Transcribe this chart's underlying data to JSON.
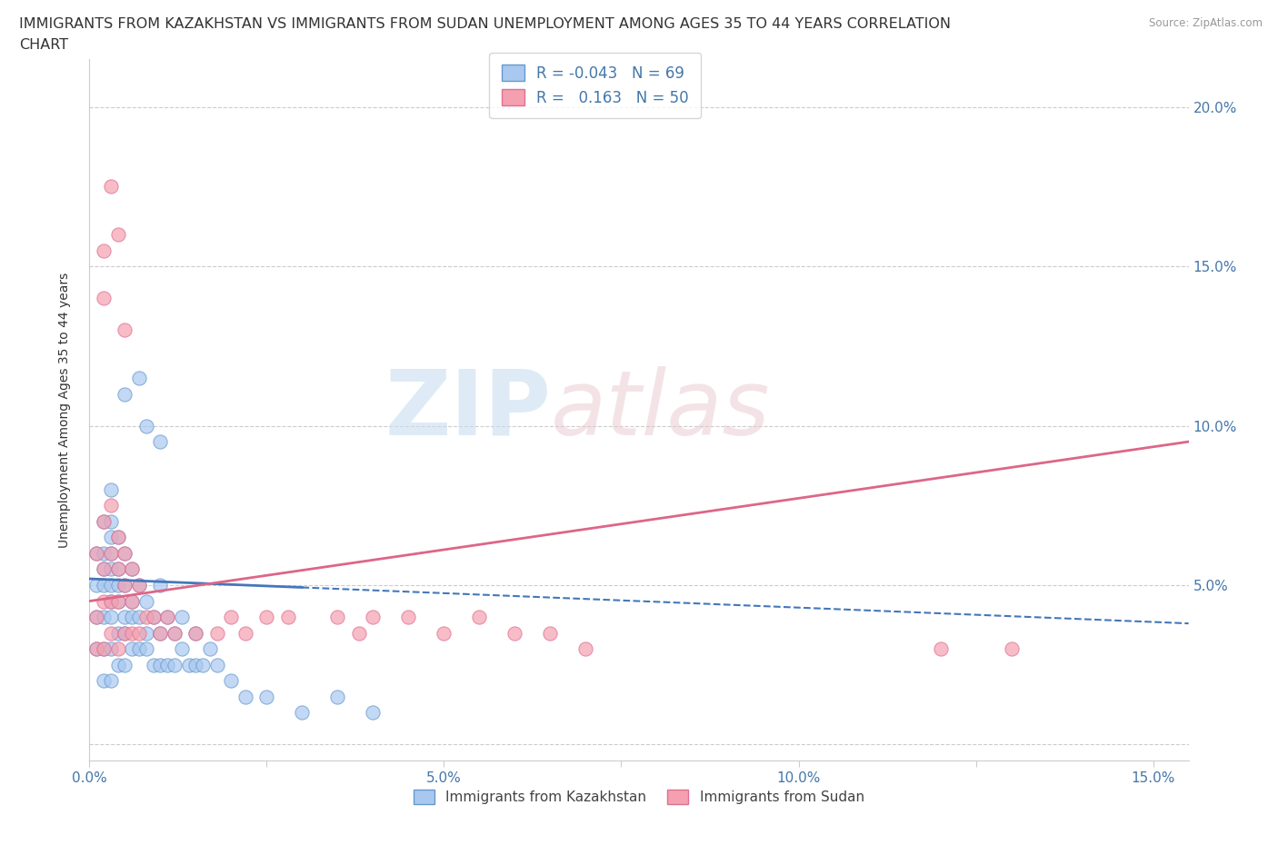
{
  "title_line1": "IMMIGRANTS FROM KAZAKHSTAN VS IMMIGRANTS FROM SUDAN UNEMPLOYMENT AMONG AGES 35 TO 44 YEARS CORRELATION",
  "title_line2": "CHART",
  "source_text": "Source: ZipAtlas.com",
  "ylabel": "Unemployment Among Ages 35 to 44 years",
  "xlim": [
    0.0,
    0.155
  ],
  "ylim": [
    -0.005,
    0.215
  ],
  "x_ticks": [
    0.0,
    0.025,
    0.05,
    0.075,
    0.1,
    0.125,
    0.15
  ],
  "x_tick_labels": [
    "0.0%",
    "",
    "5.0%",
    "",
    "10.0%",
    "",
    "15.0%"
  ],
  "y_ticks": [
    0.0,
    0.05,
    0.1,
    0.15,
    0.2
  ],
  "y_tick_labels": [
    "",
    "5.0%",
    "10.0%",
    "15.0%",
    "20.0%"
  ],
  "kazakhstan_color": "#a8c8f0",
  "sudan_color": "#f4a0b0",
  "kazakhstan_edge": "#6699cc",
  "sudan_edge": "#e07090",
  "trend_kaz_color": "#4477bb",
  "trend_sud_color": "#dd6688",
  "R_kaz": -0.043,
  "N_kaz": 69,
  "R_sud": 0.163,
  "N_sud": 50,
  "legend_label_kaz": "Immigrants from Kazakhstan",
  "legend_label_sud": "Immigrants from Sudan",
  "watermark_zip": "ZIP",
  "watermark_atlas": "atlas",
  "grid_color": "#cccccc",
  "background_color": "#ffffff",
  "title_fontsize": 11.5,
  "axis_label_fontsize": 10,
  "tick_fontsize": 11,
  "tick_color": "#4477aa",
  "kaz_trend_start_x": 0.0,
  "kaz_trend_end_x": 0.155,
  "kaz_trend_start_y": 0.052,
  "kaz_trend_end_y": 0.038,
  "sud_trend_start_x": 0.0,
  "sud_trend_end_x": 0.155,
  "sud_trend_start_y": 0.045,
  "sud_trend_end_y": 0.095,
  "kaz_x": [
    0.001,
    0.001,
    0.001,
    0.001,
    0.002,
    0.002,
    0.002,
    0.002,
    0.002,
    0.002,
    0.002,
    0.003,
    0.003,
    0.003,
    0.003,
    0.003,
    0.003,
    0.003,
    0.003,
    0.003,
    0.003,
    0.004,
    0.004,
    0.004,
    0.004,
    0.004,
    0.004,
    0.005,
    0.005,
    0.005,
    0.005,
    0.005,
    0.006,
    0.006,
    0.006,
    0.006,
    0.007,
    0.007,
    0.007,
    0.008,
    0.008,
    0.008,
    0.009,
    0.009,
    0.01,
    0.01,
    0.01,
    0.011,
    0.011,
    0.012,
    0.012,
    0.013,
    0.013,
    0.014,
    0.015,
    0.015,
    0.016,
    0.017,
    0.018,
    0.02,
    0.022,
    0.025,
    0.03,
    0.035,
    0.04,
    0.005,
    0.007,
    0.008,
    0.01
  ],
  "kaz_y": [
    0.03,
    0.04,
    0.05,
    0.06,
    0.02,
    0.03,
    0.04,
    0.05,
    0.055,
    0.06,
    0.07,
    0.02,
    0.03,
    0.04,
    0.045,
    0.05,
    0.055,
    0.06,
    0.065,
    0.07,
    0.08,
    0.025,
    0.035,
    0.045,
    0.05,
    0.055,
    0.065,
    0.025,
    0.035,
    0.04,
    0.05,
    0.06,
    0.03,
    0.04,
    0.045,
    0.055,
    0.03,
    0.04,
    0.05,
    0.03,
    0.035,
    0.045,
    0.025,
    0.04,
    0.025,
    0.035,
    0.05,
    0.025,
    0.04,
    0.025,
    0.035,
    0.03,
    0.04,
    0.025,
    0.025,
    0.035,
    0.025,
    0.03,
    0.025,
    0.02,
    0.015,
    0.015,
    0.01,
    0.015,
    0.01,
    0.11,
    0.115,
    0.1,
    0.095
  ],
  "sud_x": [
    0.001,
    0.001,
    0.001,
    0.002,
    0.002,
    0.002,
    0.002,
    0.003,
    0.003,
    0.003,
    0.003,
    0.004,
    0.004,
    0.004,
    0.004,
    0.005,
    0.005,
    0.005,
    0.006,
    0.006,
    0.006,
    0.007,
    0.007,
    0.008,
    0.009,
    0.01,
    0.011,
    0.012,
    0.015,
    0.018,
    0.02,
    0.022,
    0.025,
    0.028,
    0.035,
    0.038,
    0.04,
    0.045,
    0.05,
    0.055,
    0.06,
    0.065,
    0.07,
    0.12,
    0.13,
    0.002,
    0.002,
    0.003,
    0.004,
    0.005
  ],
  "sud_y": [
    0.03,
    0.04,
    0.06,
    0.03,
    0.045,
    0.055,
    0.07,
    0.035,
    0.045,
    0.06,
    0.075,
    0.03,
    0.045,
    0.055,
    0.065,
    0.035,
    0.05,
    0.06,
    0.035,
    0.045,
    0.055,
    0.035,
    0.05,
    0.04,
    0.04,
    0.035,
    0.04,
    0.035,
    0.035,
    0.035,
    0.04,
    0.035,
    0.04,
    0.04,
    0.04,
    0.035,
    0.04,
    0.04,
    0.035,
    0.04,
    0.035,
    0.035,
    0.03,
    0.03,
    0.03,
    0.14,
    0.155,
    0.175,
    0.16,
    0.13
  ]
}
